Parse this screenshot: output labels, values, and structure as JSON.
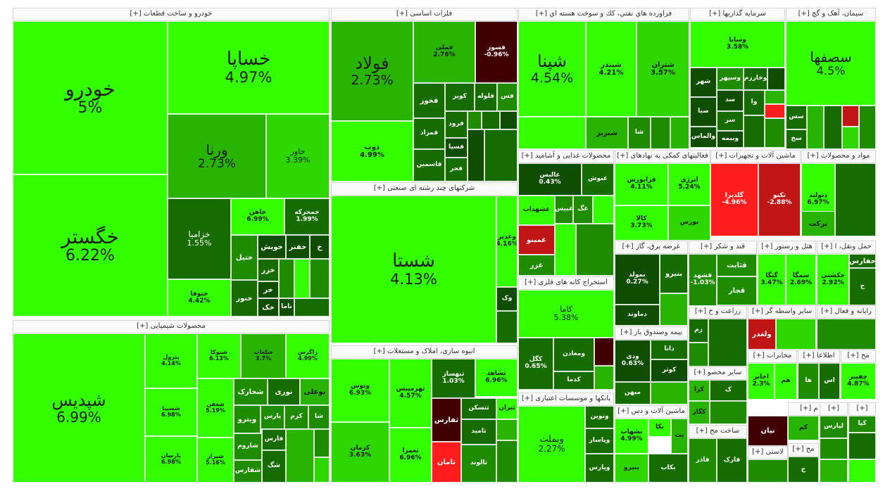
{
  "colors": {
    "g0": "#33ff00",
    "g1": "#2fd700",
    "g2": "#28b400",
    "g3": "#1f8c00",
    "g4": "#176c00",
    "g5": "#0f4d00",
    "r1": "#400000",
    "r2": "#c01515",
    "r3": "#ff1d1d"
  },
  "chart_data": {
    "type": "treemap",
    "sectors": [
      {
        "name": "خودرو و ساخت قطعات [+]",
        "stocks": [
          {
            "name": "خودرو",
            "change": "5%"
          },
          {
            "name": "خگستر",
            "change": "6.22%"
          },
          {
            "name": "خساپا",
            "change": "4.97%"
          },
          {
            "name": "ورنا",
            "change": "2.73%"
          },
          {
            "name": "خاور",
            "change": "3.39%"
          },
          {
            "name": "خزامیا",
            "change": "1.55%"
          },
          {
            "name": "خاهن",
            "change": "6.99%"
          },
          {
            "name": "خمحرکه",
            "change": "1.99%"
          },
          {
            "name": "خنوفا",
            "change": "4.42%"
          },
          {
            "name": "خویش"
          },
          {
            "name": "خفنر"
          },
          {
            "name": "خ"
          },
          {
            "name": "ختیل"
          },
          {
            "name": "خزر"
          },
          {
            "name": "خر"
          },
          {
            "name": "خنور"
          },
          {
            "name": "خک"
          },
          {
            "name": "ناما"
          }
        ]
      },
      {
        "name": "محصولات شیمیایی [+]",
        "stocks": [
          {
            "name": "شپدیس",
            "change": "6.99%"
          },
          {
            "name": "پترول",
            "change": "4.14%"
          },
          {
            "name": "شنوکا",
            "change": "6.13%"
          },
          {
            "name": "شلعاب",
            "change": "3.7%"
          },
          {
            "name": "زاگرس",
            "change": "4.99%"
          },
          {
            "name": "شسینا",
            "change": "6.98%"
          },
          {
            "name": "شغفن",
            "change": "5.19%"
          },
          {
            "name": "پارسان",
            "change": "6.98%"
          },
          {
            "name": "شیراز",
            "change": "5.16%"
          },
          {
            "name": "شخارک"
          },
          {
            "name": "نوری"
          },
          {
            "name": "بوعلی"
          },
          {
            "name": "ویترو"
          },
          {
            "name": "پارس"
          },
          {
            "name": "کرم"
          },
          {
            "name": "شا"
          },
          {
            "name": "شاروم"
          },
          {
            "name": "فارس"
          },
          {
            "name": "شفارس"
          },
          {
            "name": "شگ"
          }
        ]
      },
      {
        "name": "فلزات اساسی [+]",
        "stocks": [
          {
            "name": "فولاد",
            "change": "2.73%"
          },
          {
            "name": "فملی",
            "change": "2.76%"
          },
          {
            "name": "فسوز",
            "change": "-0.96%"
          },
          {
            "name": "ذوب",
            "change": "4.99%"
          },
          {
            "name": "فخوز"
          },
          {
            "name": "کویر"
          },
          {
            "name": "فلوله"
          },
          {
            "name": "فس"
          },
          {
            "name": "فرود"
          },
          {
            "name": "فمراد"
          },
          {
            "name": "فسپا"
          },
          {
            "name": "فاسمین"
          },
          {
            "name": "فجر"
          }
        ]
      },
      {
        "name": "شرکتهای چند رشته ای صنعتی [+]",
        "stocks": [
          {
            "name": "شستا",
            "change": "4.13%"
          },
          {
            "name": "وغدیر",
            "change": "4.16%"
          },
          {
            "name": "وک"
          }
        ]
      },
      {
        "name": "انبوه سازی، املاک و مستغلات [+]",
        "stocks": [
          {
            "name": "وتوس",
            "change": "6.93%"
          },
          {
            "name": "ثهرمپیس",
            "change": "4.57%"
          },
          {
            "name": "ثبهساز",
            "change": "1.03%"
          },
          {
            "name": "ثشاهد",
            "change": "6.96%"
          },
          {
            "name": "کرمان",
            "change": "3.63%"
          },
          {
            "name": "ثعمرا",
            "change": "6.96%"
          },
          {
            "name": "ثفارس"
          },
          {
            "name": "ثامان"
          },
          {
            "name": "ثتسکن"
          },
          {
            "name": "ثتران"
          },
          {
            "name": "ثامید"
          },
          {
            "name": "ثالوند"
          }
        ]
      },
      {
        "name": "فراورده هاي نفتي، كك و سوخت هسته اي [+]",
        "stocks": [
          {
            "name": "شپنا",
            "change": "4.54%"
          },
          {
            "name": "شبندر",
            "change": "4.21%"
          },
          {
            "name": "شتران",
            "change": "3.57%"
          },
          {
            "name": "شبریز"
          },
          {
            "name": "شا"
          }
        ]
      },
      {
        "name": "سرمایه گذاریها [+]",
        "stocks": [
          {
            "name": "وسایا",
            "change": "3.58%"
          },
          {
            "name": "شهر"
          },
          {
            "name": "وسپهر"
          },
          {
            "name": "وخارزم"
          },
          {
            "name": "سد"
          },
          {
            "name": "وا"
          },
          {
            "name": "صبا"
          },
          {
            "name": "سر"
          },
          {
            "name": "وبیمه"
          },
          {
            "name": "والماس"
          }
        ]
      },
      {
        "name": "سیمان، آهک و گچ [+]",
        "stocks": [
          {
            "name": "سصفها",
            "change": "4.5%"
          },
          {
            "name": "سس"
          },
          {
            "name": "سخ"
          }
        ]
      },
      {
        "name": "محصولات غذایی و آشامید [+]",
        "stocks": [
          {
            "name": "غالبس",
            "change": "0.43%"
          },
          {
            "name": "غنوش"
          },
          {
            "name": "غشهداب"
          },
          {
            "name": "غبیس"
          },
          {
            "name": "غگ"
          },
          {
            "name": "غمینو"
          },
          {
            "name": "غزر"
          }
        ]
      },
      {
        "name": "فعالیتهای کمکی به نهادهای [+]",
        "stocks": [
          {
            "name": "فرابورس",
            "change": "4.11%"
          },
          {
            "name": "انرژی",
            "change": "5.24%"
          },
          {
            "name": "کالا",
            "change": "3.73%"
          },
          {
            "name": "بورس"
          }
        ]
      },
      {
        "name": "ماشین آلات و تجهیزات [+]",
        "stocks": [
          {
            "name": "گلدیرا",
            "change": "-4.96%"
          },
          {
            "name": "تکنو",
            "change": "-2.88%"
          }
        ]
      },
      {
        "name": "مواد و محصولات [+]",
        "stocks": [
          {
            "name": "دتولید",
            "change": "6.97%"
          },
          {
            "name": "برکت"
          }
        ]
      },
      {
        "name": "عرضه برق، گاز [+]",
        "stocks": [
          {
            "name": "بمولد",
            "change": "0.27%"
          },
          {
            "name": "بنیرو"
          },
          {
            "name": "دماوند"
          }
        ]
      },
      {
        "name": "قند و شکر [+]",
        "stocks": [
          {
            "name": "قشهد",
            "change": "-1.03%"
          },
          {
            "name": "قثابت"
          },
          {
            "name": "قجار"
          }
        ]
      },
      {
        "name": "هتل و رستور [+]",
        "stocks": [
          {
            "name": "گتگا",
            "change": "3.47%"
          },
          {
            "name": "سمگا",
            "change": "2.69%"
          }
        ]
      },
      {
        "name": "حمل ونقل، ا [+]",
        "stocks": [
          {
            "name": "حکشتی",
            "change": "2.92%"
          },
          {
            "name": "حفارس"
          },
          {
            "name": "ح"
          }
        ]
      },
      {
        "name": "استخراج کانه های فلزی [+]",
        "stocks": [
          {
            "name": "کاما",
            "change": "5.38%"
          },
          {
            "name": "کگل",
            "change": "0.65%"
          },
          {
            "name": "ومعادن"
          },
          {
            "name": "کدما"
          }
        ]
      },
      {
        "name": "زراعت و خ [+]",
        "stocks": [
          {
            "name": "زم"
          }
        ]
      },
      {
        "name": "سایر واسطه گر [+]",
        "stocks": [
          {
            "name": "ولغدر"
          }
        ]
      },
      {
        "name": "رایانه و فعال [+]",
        "stocks": []
      },
      {
        "name": "بیمه وصندوق باز [+]",
        "stocks": [
          {
            "name": "دانا"
          },
          {
            "name": "ودی",
            "change": "0.63%"
          },
          {
            "name": "کوثر"
          },
          {
            "name": "میهن"
          }
        ]
      },
      {
        "name": "سایر محصو [+]",
        "stocks": [
          {
            "name": "کرا"
          },
          {
            "name": "کگاز"
          },
          {
            "name": "ک"
          }
        ]
      },
      {
        "name": "مخابرات [+]",
        "stocks": [
          {
            "name": "اخابر",
            "change": "2.3%"
          },
          {
            "name": "هم"
          }
        ]
      },
      {
        "name": "اطلاعا [+]",
        "stocks": [
          {
            "name": "ها"
          },
          {
            "name": "اس"
          }
        ]
      },
      {
        "name": "مح [+]",
        "stocks": [
          {
            "name": "چفیبر",
            "change": "4.87%"
          }
        ]
      },
      {
        "name": "بانکها و موسسات اعتباری [+]",
        "stocks": [
          {
            "name": "وبملت",
            "change": "2.27%"
          },
          {
            "name": "ونوین"
          },
          {
            "name": "وپاسار"
          },
          {
            "name": "وپارس"
          }
        ]
      },
      {
        "name": "ماشین آلات و دس [+]",
        "stocks": [
          {
            "name": "بشهاب",
            "change": "4.99%"
          },
          {
            "name": "بکا"
          },
          {
            "name": "بکاب"
          },
          {
            "name": "بنیرو"
          },
          {
            "name": "بت"
          }
        ]
      },
      {
        "name": "ساخت مح [+]",
        "stocks": [
          {
            "name": "فارک"
          },
          {
            "name": "فاذر"
          }
        ]
      },
      {
        "name": "تولید م [+]",
        "stocks": [
          {
            "name": "نیان"
          },
          {
            "name": "کم"
          }
        ]
      },
      {
        "name": "لاستی [+]",
        "stocks": []
      },
      {
        "name": "مح [+]",
        "stocks": [
          {
            "name": "ج"
          }
        ]
      },
      {
        "name": "[+]",
        "stocks": [
          {
            "name": "لپارس"
          }
        ]
      },
      {
        "name": "[+]",
        "stocks": [
          {
            "name": "کپا"
          }
        ]
      }
    ]
  }
}
